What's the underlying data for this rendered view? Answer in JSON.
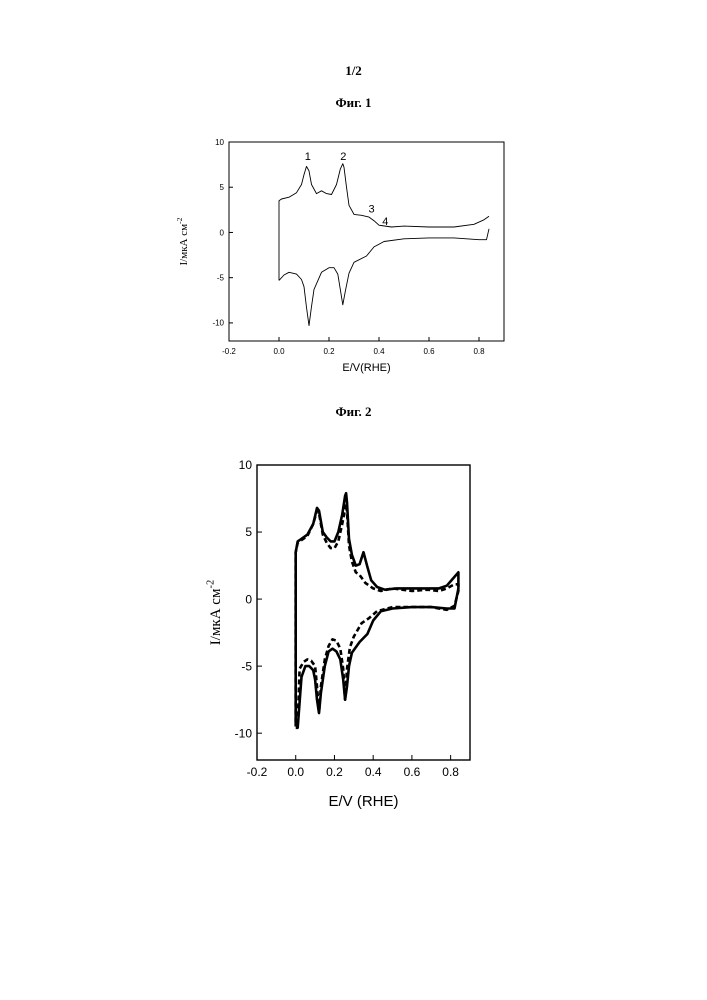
{
  "page_number": "1/2",
  "figures": [
    {
      "caption": "Фиг. 1"
    },
    {
      "caption": "Фиг. 2"
    }
  ],
  "chart_data": [
    {
      "type": "line",
      "title": "",
      "xlabel": "E/V(RHE)",
      "ylabel": "I/мкА см",
      "ylabel_superscript": "-2",
      "xlim": [
        -0.2,
        0.9
      ],
      "ylim": [
        -12,
        10
      ],
      "xticks": [
        "-0.2",
        "0.0",
        "0.2",
        "0.4",
        "0.6",
        "0.8"
      ],
      "yticks": [
        "10",
        "5",
        "0",
        "-5",
        "-10"
      ],
      "grid": false,
      "annotations": [
        "1",
        "2",
        "3",
        "4"
      ],
      "series": [
        {
          "segment": "anodic",
          "x": [
            0.0,
            0.0,
            0.01,
            0.04,
            0.07,
            0.09,
            0.1,
            0.11,
            0.12,
            0.13,
            0.15,
            0.17,
            0.19,
            0.21,
            0.23,
            0.245,
            0.255,
            0.26,
            0.27,
            0.28,
            0.3,
            0.33,
            0.36,
            0.38,
            0.4,
            0.45,
            0.5,
            0.6,
            0.7,
            0.78,
            0.82,
            0.84
          ],
          "y": [
            -5.3,
            3.5,
            3.7,
            3.9,
            4.4,
            5.3,
            6.4,
            7.3,
            6.8,
            5.3,
            4.3,
            4.6,
            4.3,
            4.2,
            5.3,
            7.0,
            7.6,
            7.2,
            5.0,
            3.0,
            2.0,
            1.9,
            1.7,
            1.3,
            0.8,
            0.6,
            0.7,
            0.6,
            0.6,
            0.9,
            1.4,
            1.8
          ]
        },
        {
          "segment": "cathodic",
          "x": [
            0.84,
            0.83,
            0.8,
            0.7,
            0.6,
            0.5,
            0.42,
            0.38,
            0.35,
            0.3,
            0.28,
            0.265,
            0.255,
            0.245,
            0.235,
            0.22,
            0.2,
            0.17,
            0.14,
            0.13,
            0.12,
            0.11,
            0.1,
            0.09,
            0.07,
            0.04,
            0.02,
            0.0
          ],
          "y": [
            0.4,
            -0.8,
            -0.8,
            -0.6,
            -0.6,
            -0.7,
            -1.0,
            -1.6,
            -2.6,
            -3.3,
            -4.5,
            -6.5,
            -8.0,
            -6.3,
            -4.6,
            -3.9,
            -3.9,
            -4.4,
            -6.3,
            -8.2,
            -10.3,
            -8.3,
            -6.0,
            -5.2,
            -4.6,
            -4.4,
            -4.7,
            -5.3
          ]
        }
      ]
    },
    {
      "type": "line",
      "title": "",
      "xlabel": "E/V (RHE)",
      "ylabel": "I/мкА см",
      "ylabel_superscript": "-2",
      "xlim": [
        -0.2,
        0.9
      ],
      "ylim": [
        -12,
        10
      ],
      "xticks": [
        "-0.2",
        "0.0",
        "0.2",
        "0.4",
        "0.6",
        "0.8"
      ],
      "yticks": [
        "10",
        "5",
        "0",
        "-5",
        "-10"
      ],
      "grid": false,
      "series": [
        {
          "style": "solid",
          "x": [
            0.0,
            0.0,
            0.01,
            0.03,
            0.06,
            0.09,
            0.11,
            0.12,
            0.14,
            0.16,
            0.18,
            0.2,
            0.22,
            0.24,
            0.255,
            0.26,
            0.265,
            0.275,
            0.29,
            0.31,
            0.33,
            0.35,
            0.37,
            0.39,
            0.42,
            0.46,
            0.52,
            0.6,
            0.68,
            0.74,
            0.78,
            0.81,
            0.84,
            0.84,
            0.82,
            0.78,
            0.7,
            0.6,
            0.5,
            0.44,
            0.4,
            0.37,
            0.33,
            0.29,
            0.275,
            0.265,
            0.255,
            0.245,
            0.23,
            0.21,
            0.19,
            0.17,
            0.15,
            0.13,
            0.12,
            0.11,
            0.1,
            0.09,
            0.07,
            0.05,
            0.03,
            0.01,
            0.0
          ],
          "y": [
            -9.5,
            3.5,
            4.3,
            4.5,
            4.8,
            5.6,
            6.8,
            6.6,
            5.0,
            4.6,
            4.3,
            4.3,
            5.0,
            6.3,
            7.7,
            7.9,
            7.2,
            4.5,
            3.3,
            2.5,
            2.6,
            3.5,
            2.4,
            1.4,
            0.9,
            0.7,
            0.8,
            0.8,
            0.8,
            0.8,
            1.0,
            1.5,
            2.0,
            0.8,
            -0.7,
            -0.7,
            -0.6,
            -0.6,
            -0.7,
            -0.9,
            -1.6,
            -2.6,
            -3.2,
            -4.0,
            -5.0,
            -6.5,
            -7.5,
            -6.0,
            -4.5,
            -3.9,
            -3.7,
            -3.9,
            -5.0,
            -7.0,
            -8.5,
            -7.5,
            -6.0,
            -5.3,
            -5.0,
            -5.0,
            -5.8,
            -9.6,
            -9.6
          ]
        },
        {
          "style": "dashed",
          "x": [
            0.0,
            0.0,
            0.01,
            0.03,
            0.06,
            0.09,
            0.11,
            0.12,
            0.14,
            0.16,
            0.18,
            0.2,
            0.22,
            0.24,
            0.255,
            0.26,
            0.265,
            0.275,
            0.29,
            0.31,
            0.33,
            0.36,
            0.4,
            0.44,
            0.5,
            0.6,
            0.68,
            0.74,
            0.78,
            0.82,
            0.84,
            0.84,
            0.82,
            0.78,
            0.7,
            0.6,
            0.5,
            0.42,
            0.38,
            0.34,
            0.3,
            0.28,
            0.265,
            0.255,
            0.245,
            0.23,
            0.21,
            0.19,
            0.17,
            0.15,
            0.13,
            0.12,
            0.11,
            0.1,
            0.08,
            0.06,
            0.04,
            0.02,
            0.01,
            0.0
          ],
          "y": [
            -9.2,
            3.5,
            4.2,
            4.4,
            4.7,
            5.6,
            6.6,
            6.4,
            4.8,
            4.2,
            3.8,
            3.8,
            4.3,
            5.6,
            6.7,
            7.1,
            6.5,
            4.0,
            2.8,
            2.0,
            1.8,
            1.2,
            0.8,
            0.6,
            0.8,
            0.6,
            0.7,
            0.6,
            0.8,
            1.1,
            1.1,
            0.6,
            -0.5,
            -0.8,
            -0.6,
            -0.6,
            -0.6,
            -0.9,
            -1.4,
            -1.8,
            -2.8,
            -3.6,
            -5.2,
            -7.5,
            -5.2,
            -3.7,
            -3.1,
            -3.0,
            -3.5,
            -4.5,
            -6.5,
            -8.5,
            -6.5,
            -5.0,
            -4.6,
            -4.5,
            -4.7,
            -5.2,
            -9.3,
            -9.3
          ]
        }
      ]
    }
  ]
}
